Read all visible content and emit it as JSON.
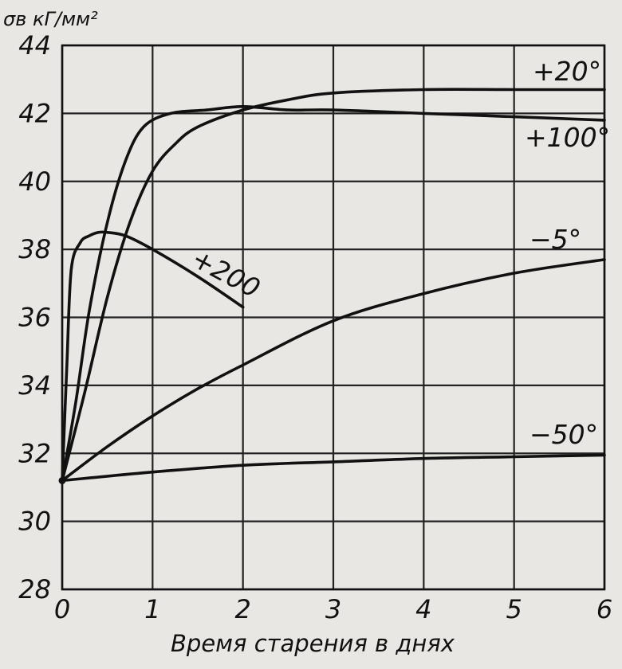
{
  "chart_data": {
    "type": "line",
    "ylabel": "σв кГ/мм²",
    "xlabel": "Время старения в днях",
    "xlim": [
      0,
      6
    ],
    "ylim": [
      28,
      44
    ],
    "x_ticks": [
      "0",
      "1",
      "2",
      "3",
      "4",
      "5",
      "6"
    ],
    "y_ticks": [
      "28",
      "30",
      "32",
      "34",
      "36",
      "38",
      "40",
      "42",
      "44"
    ],
    "grid": true,
    "series": [
      {
        "name": "+20°",
        "x": [
          0,
          0.25,
          0.5,
          0.75,
          1.0,
          1.25,
          1.5,
          2.0,
          2.5,
          3.0,
          4.0,
          5.0,
          6.0
        ],
        "values": [
          31.2,
          33.8,
          36.6,
          38.8,
          40.3,
          41.1,
          41.6,
          42.1,
          42.4,
          42.6,
          42.7,
          42.7,
          42.7
        ]
      },
      {
        "name": "+100°",
        "x": [
          0,
          0.15,
          0.3,
          0.5,
          0.7,
          0.9,
          1.2,
          1.6,
          2.0,
          2.5,
          3.0,
          4.0,
          5.0,
          6.0
        ],
        "values": [
          31.2,
          33.5,
          36.2,
          38.8,
          40.6,
          41.6,
          42.0,
          42.1,
          42.2,
          42.1,
          42.1,
          42.0,
          41.9,
          41.8
        ]
      },
      {
        "name": "+200",
        "x": [
          0,
          0.05,
          0.1,
          0.2,
          0.3,
          0.4,
          0.5,
          0.7,
          1.0,
          1.5,
          2.0
        ],
        "values": [
          31.2,
          34.5,
          37.4,
          38.2,
          38.4,
          38.5,
          38.5,
          38.4,
          38.0,
          37.2,
          36.3
        ]
      },
      {
        "name": "−5°",
        "x": [
          0,
          0.5,
          1.0,
          1.5,
          2.0,
          3.0,
          4.0,
          5.0,
          6.0
        ],
        "values": [
          31.2,
          32.2,
          33.1,
          33.9,
          34.6,
          35.9,
          36.7,
          37.3,
          37.7
        ]
      },
      {
        "name": "−50°",
        "x": [
          0,
          1.0,
          2.0,
          3.0,
          4.0,
          5.0,
          6.0
        ],
        "values": [
          31.2,
          31.45,
          31.65,
          31.75,
          31.85,
          31.9,
          31.95
        ]
      }
    ]
  }
}
